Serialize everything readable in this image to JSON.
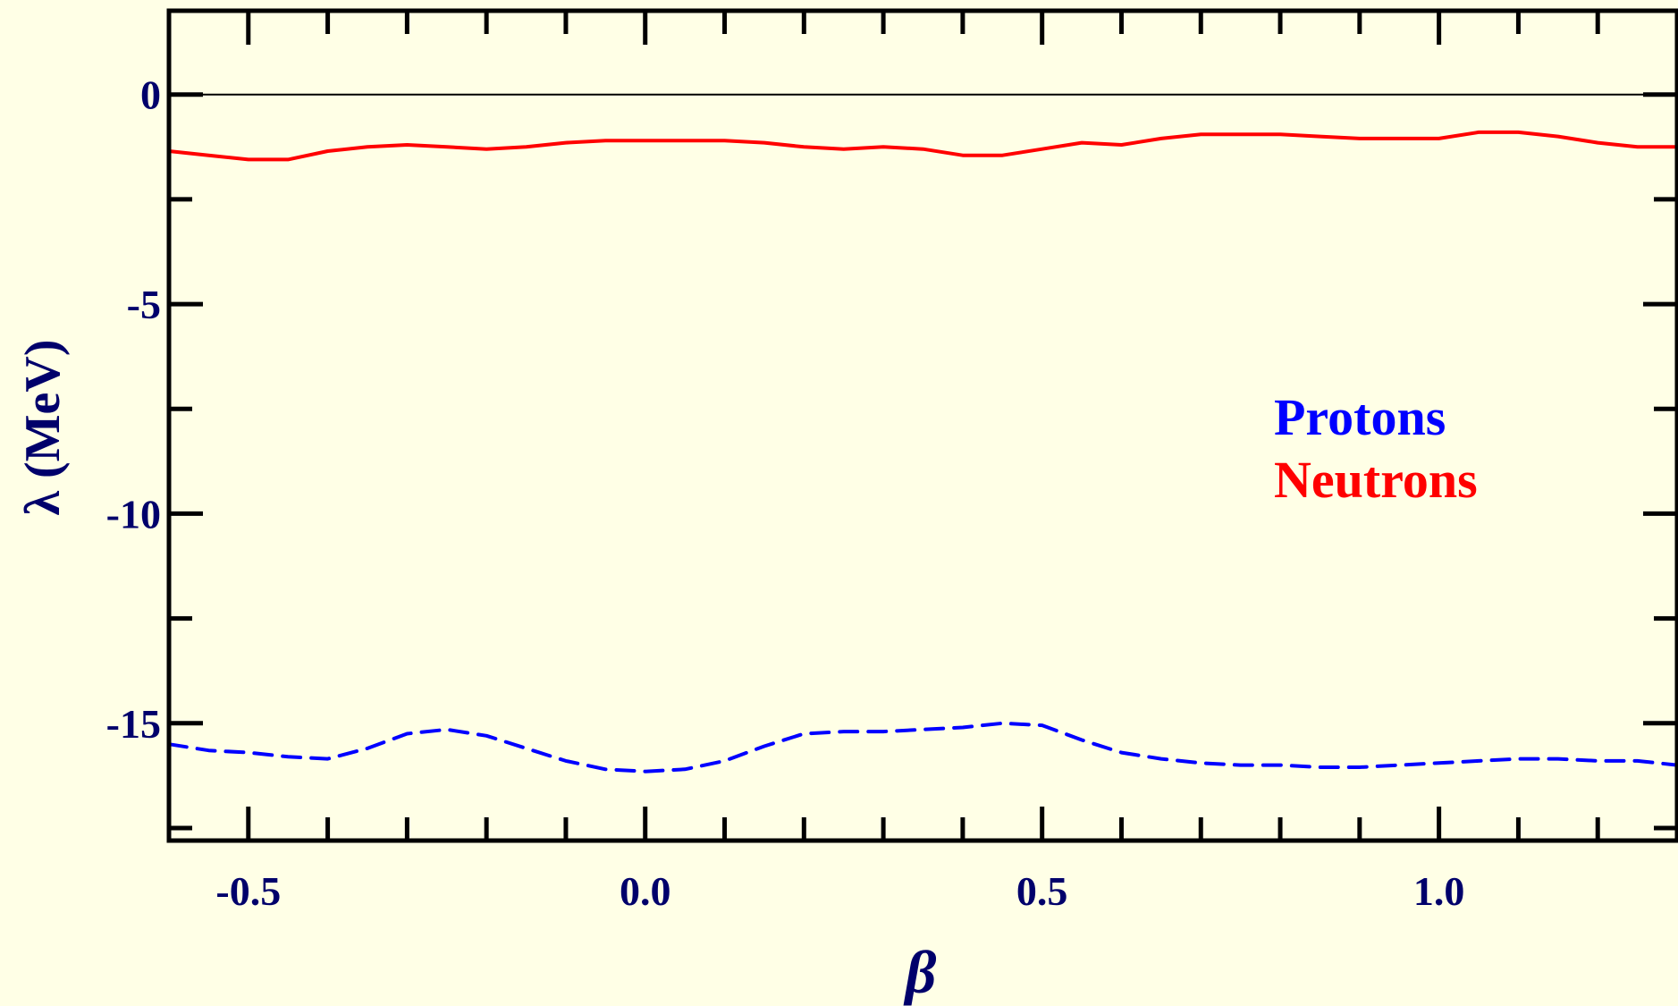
{
  "chart_data": {
    "type": "line",
    "title": "",
    "xlabel": "β",
    "ylabel": "λ (MeV)",
    "xlim": [
      -0.6,
      1.3
    ],
    "ylim": [
      -17.8,
      2.0
    ],
    "x_ticks": [
      {
        "value": -0.5,
        "label": "-0.5"
      },
      {
        "value": 0.0,
        "label": "0.0"
      },
      {
        "value": 0.5,
        "label": "0.5"
      },
      {
        "value": 1.0,
        "label": "1.0"
      }
    ],
    "y_ticks": [
      {
        "value": 0,
        "label": "0"
      },
      {
        "value": -5,
        "label": "-5"
      },
      {
        "value": -10,
        "label": "-10"
      },
      {
        "value": -15,
        "label": "-15"
      }
    ],
    "reference_line": {
      "y": 0,
      "color": "#000000"
    },
    "legend_placement": "right",
    "series": [
      {
        "name": "Protons",
        "color": "#0000ff",
        "style": "dashed",
        "x": [
          -0.6,
          -0.55,
          -0.5,
          -0.45,
          -0.4,
          -0.35,
          -0.3,
          -0.25,
          -0.2,
          -0.15,
          -0.1,
          -0.05,
          0.0,
          0.05,
          0.1,
          0.15,
          0.2,
          0.25,
          0.3,
          0.35,
          0.4,
          0.45,
          0.5,
          0.55,
          0.6,
          0.65,
          0.7,
          0.75,
          0.8,
          0.85,
          0.9,
          0.95,
          1.0,
          1.05,
          1.1,
          1.15,
          1.2,
          1.25,
          1.3
        ],
        "values": [
          -15.5,
          -15.65,
          -15.7,
          -15.8,
          -15.85,
          -15.6,
          -15.25,
          -15.15,
          -15.3,
          -15.6,
          -15.9,
          -16.1,
          -16.15,
          -16.1,
          -15.9,
          -15.55,
          -15.25,
          -15.2,
          -15.2,
          -15.15,
          -15.1,
          -15.0,
          -15.05,
          -15.4,
          -15.7,
          -15.85,
          -15.95,
          -16.0,
          -16.0,
          -16.05,
          -16.05,
          -16.0,
          -15.95,
          -15.9,
          -15.85,
          -15.85,
          -15.9,
          -15.9,
          -16.0
        ]
      },
      {
        "name": "Neutrons",
        "color": "#ff0000",
        "style": "solid",
        "x": [
          -0.6,
          -0.55,
          -0.5,
          -0.45,
          -0.4,
          -0.35,
          -0.3,
          -0.25,
          -0.2,
          -0.15,
          -0.1,
          -0.05,
          0.0,
          0.05,
          0.1,
          0.15,
          0.2,
          0.25,
          0.3,
          0.35,
          0.4,
          0.45,
          0.5,
          0.55,
          0.6,
          0.65,
          0.7,
          0.75,
          0.8,
          0.85,
          0.9,
          0.95,
          1.0,
          1.05,
          1.1,
          1.15,
          1.2,
          1.25,
          1.3
        ],
        "values": [
          -1.35,
          -1.45,
          -1.55,
          -1.55,
          -1.35,
          -1.25,
          -1.2,
          -1.25,
          -1.3,
          -1.25,
          -1.15,
          -1.1,
          -1.1,
          -1.1,
          -1.1,
          -1.15,
          -1.25,
          -1.3,
          -1.25,
          -1.3,
          -1.45,
          -1.45,
          -1.3,
          -1.15,
          -1.2,
          -1.05,
          -0.95,
          -0.95,
          -0.95,
          -1.0,
          -1.05,
          -1.05,
          -1.05,
          -0.9,
          -0.9,
          -1.0,
          -1.15,
          -1.25,
          -1.25
        ]
      }
    ]
  }
}
